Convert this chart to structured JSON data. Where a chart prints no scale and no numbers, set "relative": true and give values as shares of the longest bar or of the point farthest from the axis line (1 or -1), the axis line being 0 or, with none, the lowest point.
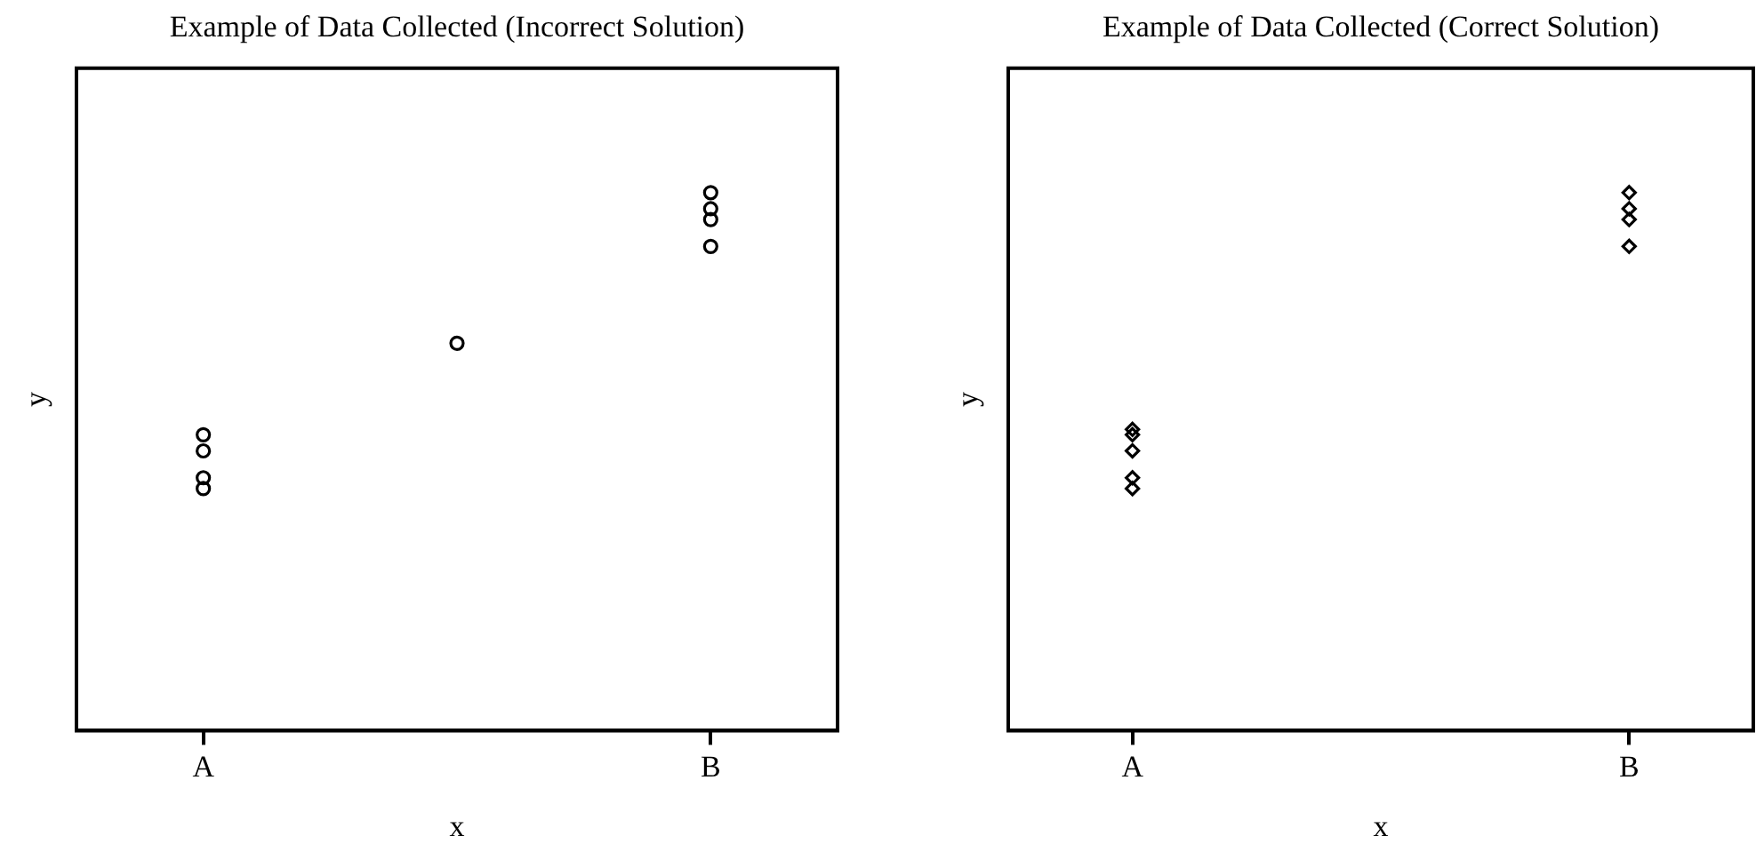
{
  "chart_data": [
    {
      "type": "scatter",
      "title": "Example of Data Collected (Incorrect Solution)",
      "xlabel": "x",
      "ylabel": "y",
      "relative": true,
      "categories": [
        "A",
        null,
        "B"
      ],
      "marker": "circle",
      "grid": false,
      "legend": false,
      "tick_labels": "x",
      "series": [
        {
          "color": "#000000",
          "values": [
            0.55,
            0.72,
            1
          ]
        },
        {
          "color": "#000000",
          "values": [
            0.52,
            null,
            0.97
          ]
        },
        {
          "color": "#000000",
          "values": [
            0.47,
            null,
            0.95
          ]
        },
        {
          "color": "#000000",
          "values": [
            0.45,
            null,
            0.9
          ]
        }
      ]
    },
    {
      "type": "scatter",
      "title": "Example of Data Collected (Correct Solution)",
      "xlabel": "x",
      "ylabel": "y",
      "relative": true,
      "categories": [
        "A",
        null,
        "B"
      ],
      "marker": "diamond",
      "grid": false,
      "legend": false,
      "tick_labels": "x",
      "series": [
        {
          "color": "#000000",
          "values": [
            0.56,
            null,
            1
          ]
        },
        {
          "color": "#000000",
          "values": [
            0.55,
            null,
            0.97
          ]
        },
        {
          "color": "#000000",
          "values": [
            0.52,
            null,
            0.95
          ]
        },
        {
          "color": "#000000",
          "values": [
            0.47,
            null,
            0.9
          ]
        },
        {
          "color": "#000000",
          "values": [
            0.45,
            null,
            null
          ]
        }
      ]
    }
  ]
}
